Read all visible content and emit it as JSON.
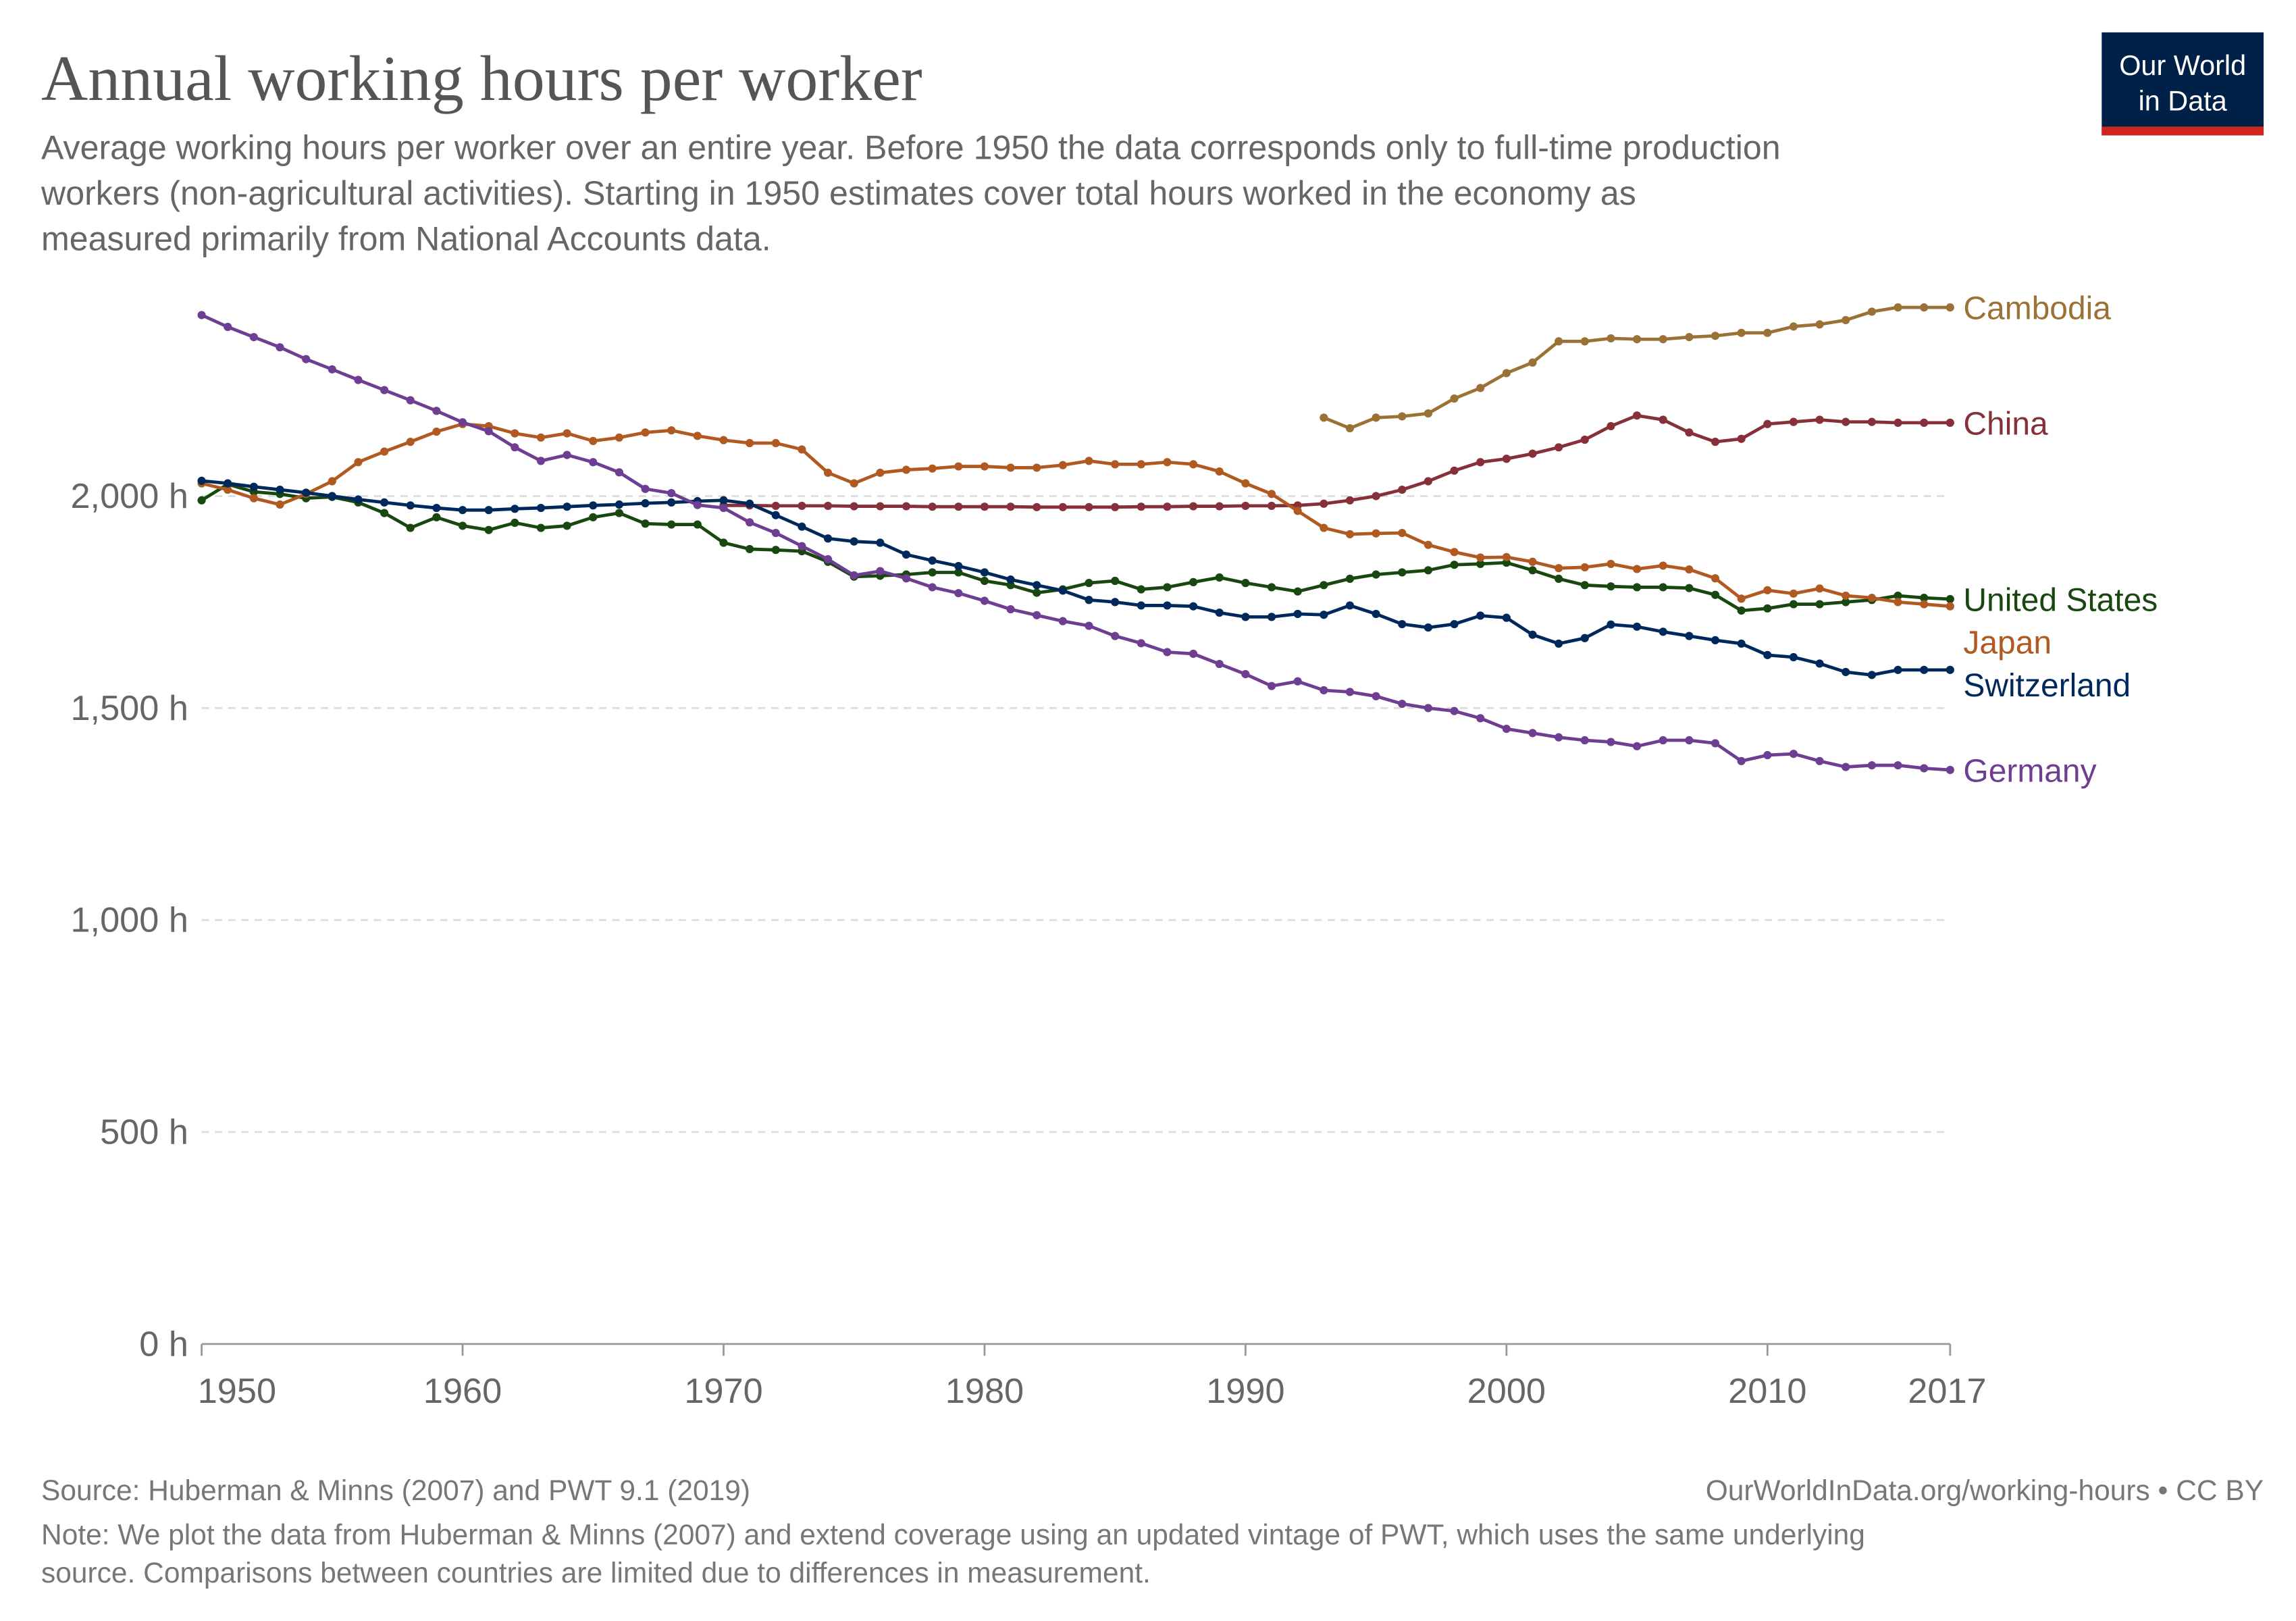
{
  "chart_data": {
    "type": "line",
    "title": "Annual working hours per worker",
    "subtitle": [
      "Average working hours per worker over an entire year. Before 1950 the data corresponds only to full-time production",
      "workers (non-agricultural activities). Starting in 1950 estimates cover total hours worked in the economy as",
      "measured primarily from National Accounts data."
    ],
    "logo": [
      "Our World",
      "in Data"
    ],
    "source": "Source: Huberman & Minns (2007) and PWT 9.1 (2019)",
    "url": "OurWorldInData.org/working-hours • CC BY",
    "note": [
      "Note: We plot the data from Huberman & Minns (2007) and extend coverage using an updated vintage of PWT, which uses the same underlying",
      "source. Comparisons between countries are limited due to differences in measurement."
    ],
    "x": [
      1950,
      1951,
      1952,
      1953,
      1954,
      1955,
      1956,
      1957,
      1958,
      1959,
      1960,
      1961,
      1962,
      1963,
      1964,
      1965,
      1966,
      1967,
      1968,
      1969,
      1970,
      1971,
      1972,
      1973,
      1974,
      1975,
      1976,
      1977,
      1978,
      1979,
      1980,
      1981,
      1982,
      1983,
      1984,
      1985,
      1986,
      1987,
      1988,
      1989,
      1990,
      1991,
      1992,
      1993,
      1994,
      1995,
      1996,
      1997,
      1998,
      1999,
      2000,
      2001,
      2002,
      2003,
      2004,
      2005,
      2006,
      2007,
      2008,
      2009,
      2010,
      2011,
      2012,
      2013,
      2014,
      2015,
      2016,
      2017
    ],
    "xlim": [
      1950,
      2017
    ],
    "xticks": [
      1950,
      1960,
      1970,
      1980,
      1990,
      2000,
      2010,
      2017
    ],
    "ylim": [
      0,
      2460
    ],
    "yticks": [
      {
        "value": 0,
        "label": "0 h"
      },
      {
        "value": 500,
        "label": "500 h"
      },
      {
        "value": 1000,
        "label": "1,000 h"
      },
      {
        "value": 1500,
        "label": "1,500 h"
      },
      {
        "value": 2000,
        "label": "2,000 h"
      }
    ],
    "grid": true,
    "series": [
      {
        "name": "Cambodia",
        "color": "#9a7235",
        "values": [
          null,
          null,
          null,
          null,
          null,
          null,
          null,
          null,
          null,
          null,
          null,
          null,
          null,
          null,
          null,
          null,
          null,
          null,
          null,
          null,
          null,
          null,
          null,
          null,
          null,
          null,
          null,
          null,
          null,
          null,
          null,
          null,
          null,
          null,
          null,
          null,
          null,
          null,
          null,
          null,
          null,
          null,
          null,
          2185,
          2160,
          2185,
          2188,
          2195,
          2230,
          2255,
          2290,
          2315,
          2365,
          2365,
          2372,
          2370,
          2370,
          2375,
          2378,
          2385,
          2385,
          2400,
          2405,
          2415,
          2435,
          2445,
          2445,
          2445
        ]
      },
      {
        "name": "China",
        "color": "#883039",
        "values": [
          null,
          null,
          null,
          null,
          null,
          null,
          null,
          null,
          null,
          null,
          null,
          null,
          null,
          null,
          null,
          null,
          null,
          null,
          null,
          null,
          1978,
          1978,
          1977,
          1977,
          1977,
          1976,
          1976,
          1976,
          1975,
          1975,
          1975,
          1975,
          1974,
          1974,
          1974,
          1974,
          1975,
          1975,
          1976,
          1976,
          1977,
          1977,
          1978,
          1982,
          1990,
          2000,
          2015,
          2035,
          2060,
          2080,
          2088,
          2100,
          2115,
          2133,
          2165,
          2190,
          2180,
          2150,
          2128,
          2135,
          2170,
          2175,
          2180,
          2175,
          2175,
          2173,
          2173,
          2173
        ]
      },
      {
        "name": "United States",
        "color": "#18470f",
        "values": [
          1990,
          2028,
          2010,
          2005,
          1995,
          1998,
          1985,
          1960,
          1925,
          1950,
          1930,
          1920,
          1937,
          1925,
          1930,
          1950,
          1960,
          1935,
          1933,
          1933,
          1890,
          1875,
          1873,
          1870,
          1845,
          1810,
          1812,
          1815,
          1820,
          1820,
          1800,
          1790,
          1772,
          1780,
          1795,
          1800,
          1780,
          1785,
          1797,
          1808,
          1795,
          1785,
          1775,
          1790,
          1805,
          1815,
          1820,
          1825,
          1838,
          1840,
          1843,
          1825,
          1805,
          1790,
          1787,
          1785,
          1785,
          1783,
          1767,
          1730,
          1735,
          1745,
          1745,
          1750,
          1755,
          1765,
          1760,
          1757
        ]
      },
      {
        "name": "Japan",
        "color": "#b05a22",
        "values": [
          2030,
          2015,
          1995,
          1980,
          2005,
          2035,
          2080,
          2105,
          2128,
          2152,
          2170,
          2165,
          2148,
          2138,
          2148,
          2130,
          2138,
          2150,
          2155,
          2142,
          2132,
          2125,
          2125,
          2110,
          2055,
          2030,
          2055,
          2062,
          2065,
          2070,
          2070,
          2067,
          2067,
          2073,
          2083,
          2075,
          2075,
          2080,
          2075,
          2058,
          2030,
          2005,
          1965,
          1925,
          1910,
          1912,
          1913,
          1885,
          1868,
          1855,
          1856,
          1845,
          1830,
          1832,
          1840,
          1828,
          1836,
          1827,
          1806,
          1758,
          1778,
          1770,
          1782,
          1765,
          1760,
          1750,
          1745,
          1740
        ]
      },
      {
        "name": "Switzerland",
        "color": "#00295b",
        "values": [
          2036,
          2030,
          2022,
          2015,
          2008,
          2000,
          1992,
          1985,
          1978,
          1972,
          1967,
          1967,
          1970,
          1972,
          1975,
          1978,
          1980,
          1983,
          1985,
          1988,
          1990,
          1982,
          1955,
          1928,
          1900,
          1893,
          1890,
          1862,
          1848,
          1835,
          1820,
          1803,
          1790,
          1777,
          1755,
          1750,
          1742,
          1742,
          1740,
          1725,
          1715,
          1715,
          1722,
          1720,
          1742,
          1722,
          1698,
          1690,
          1698,
          1718,
          1713,
          1673,
          1652,
          1665,
          1697,
          1692,
          1680,
          1670,
          1660,
          1652,
          1625,
          1620,
          1605,
          1585,
          1578,
          1590,
          1590,
          1590
        ]
      },
      {
        "name": "Germany",
        "color": "#6d3e91",
        "values": [
          2427,
          2399,
          2375,
          2351,
          2323,
          2299,
          2274,
          2250,
          2226,
          2201,
          2174,
          2153,
          2115,
          2083,
          2097,
          2080,
          2056,
          2017,
          2007,
          1979,
          1972,
          1938,
          1913,
          1882,
          1851,
          1813,
          1823,
          1806,
          1785,
          1771,
          1753,
          1733,
          1719,
          1705,
          1694,
          1670,
          1653,
          1632,
          1628,
          1604,
          1580,
          1552,
          1563,
          1542,
          1538,
          1528,
          1510,
          1500,
          1493,
          1476,
          1451,
          1441,
          1431,
          1424,
          1420,
          1410,
          1424,
          1424,
          1417,
          1375,
          1389,
          1392,
          1375,
          1361,
          1365,
          1365,
          1358,
          1354
        ]
      }
    ]
  }
}
